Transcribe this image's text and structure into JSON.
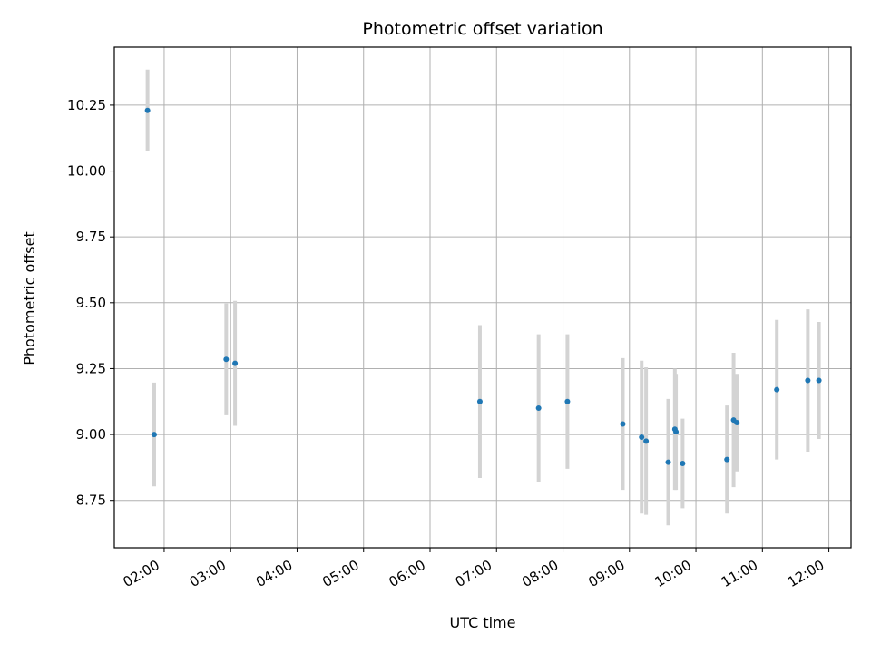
{
  "chart_data": {
    "type": "scatter",
    "title": "Photometric offset variation",
    "xlabel": "UTC time",
    "ylabel": "Photometric offset",
    "xlim": [
      "01:15",
      "12:20"
    ],
    "ylim": [
      8.57,
      10.47
    ],
    "xticks": [
      "02:00",
      "03:00",
      "04:00",
      "05:00",
      "06:00",
      "07:00",
      "08:00",
      "09:00",
      "10:00",
      "11:00",
      "12:00"
    ],
    "yticks": [
      "8.75",
      "9.00",
      "9.25",
      "9.50",
      "9.75",
      "10.00",
      "10.25"
    ],
    "grid": true,
    "legend": "none",
    "colors": {
      "points": "#1f77b4",
      "errorbars": "#d3d3d3",
      "grid": "#b0b0b0"
    },
    "points": [
      {
        "x": "01:45",
        "y": 10.23,
        "err": 0.155
      },
      {
        "x": "01:51",
        "y": 9.0,
        "err": 0.197
      },
      {
        "x": "02:56",
        "y": 9.285,
        "err": 0.212
      },
      {
        "x": "03:04",
        "y": 9.27,
        "err": 0.237
      },
      {
        "x": "06:45",
        "y": 9.125,
        "err": 0.29
      },
      {
        "x": "07:38",
        "y": 9.1,
        "err": 0.28
      },
      {
        "x": "08:04",
        "y": 9.125,
        "err": 0.255
      },
      {
        "x": "08:54",
        "y": 9.04,
        "err": 0.25
      },
      {
        "x": "09:11",
        "y": 8.99,
        "err": 0.29
      },
      {
        "x": "09:15",
        "y": 8.975,
        "err": 0.28
      },
      {
        "x": "09:35",
        "y": 8.895,
        "err": 0.24
      },
      {
        "x": "09:41",
        "y": 9.02,
        "err": 0.23
      },
      {
        "x": "09:42",
        "y": 9.01,
        "err": 0.22
      },
      {
        "x": "09:48",
        "y": 8.89,
        "err": 0.17
      },
      {
        "x": "10:28",
        "y": 8.905,
        "err": 0.205
      },
      {
        "x": "10:34",
        "y": 9.055,
        "err": 0.255
      },
      {
        "x": "10:37",
        "y": 9.045,
        "err": 0.185
      },
      {
        "x": "11:13",
        "y": 9.17,
        "err": 0.265
      },
      {
        "x": "11:41",
        "y": 9.205,
        "err": 0.27
      },
      {
        "x": "11:51",
        "y": 9.205,
        "err": 0.222
      }
    ]
  }
}
